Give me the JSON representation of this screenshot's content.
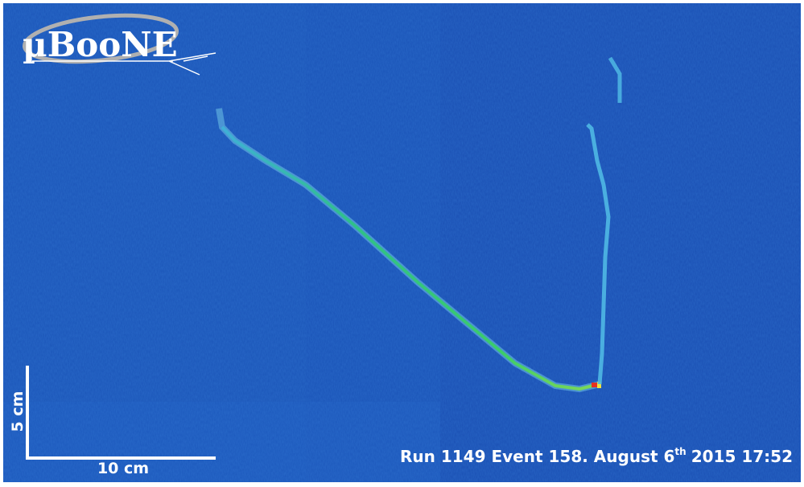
{
  "logo": "µBooNE",
  "scale": {
    "vertical": "5 cm",
    "horizontal": "10 cm"
  },
  "caption": {
    "before": "Run 1149 Event 158. August 6",
    "superscript": "th",
    "after": "2015 17:52"
  }
}
